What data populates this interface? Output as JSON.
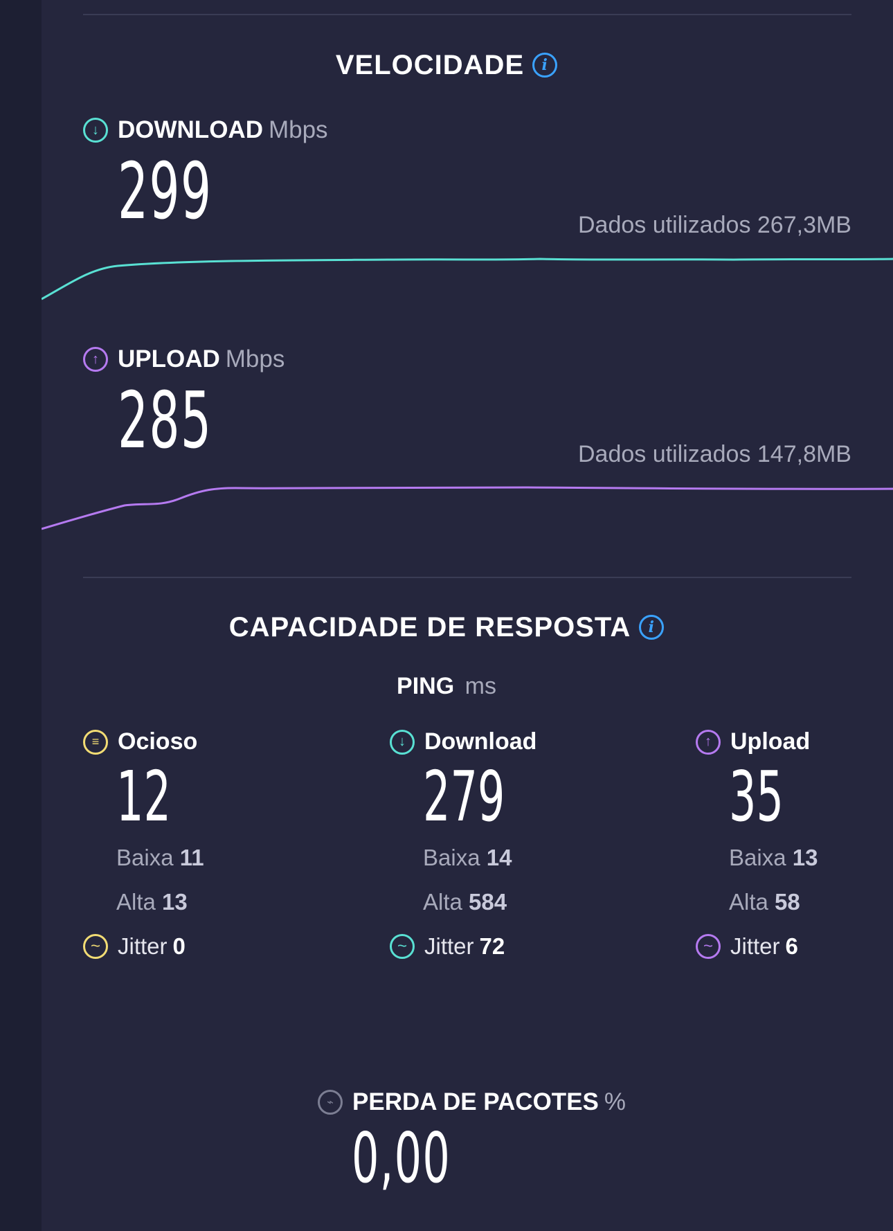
{
  "speed": {
    "title": "VELOCIDADE",
    "download": {
      "label": "DOWNLOAD",
      "unit": "Mbps",
      "value": "299",
      "data_used": "Dados utilizados 267,3MB",
      "color": "#59e0d3"
    },
    "upload": {
      "label": "UPLOAD",
      "unit": "Mbps",
      "value": "285",
      "data_used": "Dados utilizados 147,8MB",
      "color": "#b57af0"
    }
  },
  "responsiveness": {
    "title": "CAPACIDADE DE RESPOSTA",
    "ping_label": "PING",
    "ping_unit": "ms",
    "columns": [
      {
        "name": "Ocioso",
        "value": "12",
        "low_label": "Baixa",
        "low": "11",
        "high_label": "Alta",
        "high": "13",
        "jitter_label": "Jitter",
        "jitter": "0",
        "color": "#f2dc74",
        "icon": "idle-icon"
      },
      {
        "name": "Download",
        "value": "279",
        "low_label": "Baixa",
        "low": "14",
        "high_label": "Alta",
        "high": "584",
        "jitter_label": "Jitter",
        "jitter": "72",
        "color": "#59e0d3",
        "icon": "download-arrow-icon"
      },
      {
        "name": "Upload",
        "value": "35",
        "low_label": "Baixa",
        "low": "13",
        "high_label": "Alta",
        "high": "58",
        "jitter_label": "Jitter",
        "jitter": "6",
        "color": "#b57af0",
        "icon": "upload-arrow-icon"
      }
    ]
  },
  "packet_loss": {
    "label": "PERDA DE PACOTES",
    "unit": "%",
    "value": "0,00"
  }
}
